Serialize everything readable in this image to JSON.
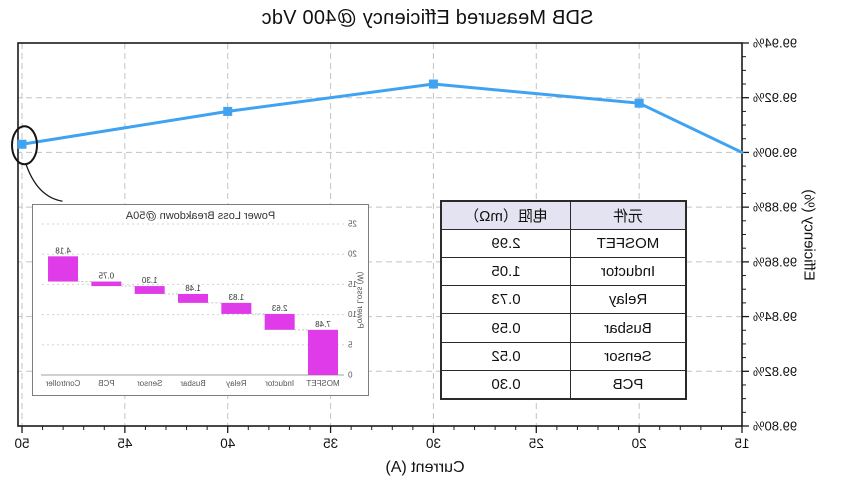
{
  "presentation": {
    "mirrored_horizontally": true,
    "background": "#ffffff"
  },
  "chart_data": [
    {
      "id": "efficiency-curve",
      "type": "line",
      "title": "SDB Measured Efficiency @400 Vdc",
      "xlabel": "Current (A)",
      "ylabel": "Efficiency (%)",
      "x": [
        15,
        20,
        30,
        40,
        50
      ],
      "y": [
        99.9,
        99.918,
        99.925,
        99.915,
        99.903
      ],
      "xlim": [
        15,
        50
      ],
      "ylim": [
        99.8,
        99.94
      ],
      "xticks": [
        15,
        20,
        25,
        30,
        35,
        40,
        45,
        50
      ],
      "yticks": [
        99.8,
        99.82,
        99.84,
        99.86,
        99.88,
        99.9,
        99.92,
        99.94
      ],
      "x_minor_step": 1,
      "y_minor_step": 0.005,
      "grid": "dashed",
      "legend": "none",
      "line_color": "#3FA3F2",
      "marker": "square",
      "markers_at_x": [
        20,
        30,
        40,
        50
      ],
      "annotation": {
        "circled_point_x": 50,
        "leader_to": "inset chart"
      }
    },
    {
      "id": "loss-breakdown-inset",
      "type": "bar",
      "subtype": "waterfall",
      "title": "Power Loss Breakdown @50A",
      "ylabel": "Power Loss (W)",
      "categories": [
        "MOSFET",
        "Inductor",
        "Relay",
        "Busbar",
        "Sensor",
        "PCB",
        "Controller"
      ],
      "values": [
        7.48,
        2.63,
        1.83,
        1.48,
        1.3,
        0.75,
        4.18
      ],
      "value_labels": [
        "7.48",
        "2.63",
        "1.83",
        "1.48",
        "1.30",
        "0.75",
        "4.18"
      ],
      "ylim": [
        0,
        25
      ],
      "yticks": [
        0,
        5,
        10,
        15,
        20,
        25
      ],
      "grid": "dashed",
      "bar_color": "#E03BE8"
    },
    {
      "id": "resistance-table",
      "type": "table",
      "columns": [
        "元件",
        "电阻（mΩ）"
      ],
      "rows": [
        [
          "MOSFET",
          "2.99"
        ],
        [
          "Inductor",
          "1.05"
        ],
        [
          "Relay",
          "0.73"
        ],
        [
          "Busbar",
          "0.59"
        ],
        [
          "Sensor",
          "0.52"
        ],
        [
          "PCB",
          "0.30"
        ]
      ],
      "header_bg": "#E3E3F1"
    }
  ]
}
